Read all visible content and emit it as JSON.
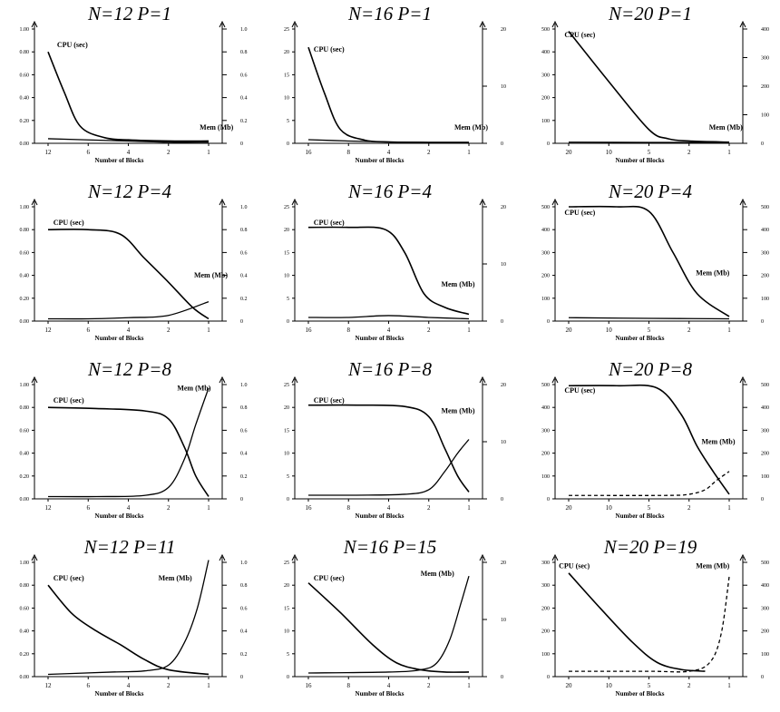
{
  "chart_data": [
    {
      "type": "line",
      "title": "N=12 P=1",
      "xlabel": "Number of Blocks",
      "x_ticks": [
        "12",
        "6",
        "4",
        "2",
        "1"
      ],
      "y_left_ticks": [
        "1.00",
        "0.80",
        "0.60",
        "0.40",
        "0.20",
        "0.00"
      ],
      "y_right_ticks": [
        "1.0",
        "0.8",
        "0.6",
        "0.4",
        "0.2",
        "0"
      ],
      "ylim": [
        0,
        1
      ],
      "series": [
        {
          "name": "CPU (sec)",
          "x": [
            0,
            0.1,
            0.2,
            0.35,
            0.5,
            0.75,
            1
          ],
          "values": [
            0.8,
            0.45,
            0.15,
            0.05,
            0.03,
            0.02,
            0.02
          ]
        },
        {
          "name": "Mem (Mb)",
          "x": [
            0,
            0.25,
            0.5,
            0.75,
            1
          ],
          "values": [
            0.04,
            0.03,
            0.02,
            0.01,
            0.01
          ]
        }
      ],
      "cpu_label_pos": [
        0.12,
        0.84
      ],
      "mem_label_pos": [
        0.88,
        0.12
      ],
      "mem_dashed": false
    },
    {
      "type": "line",
      "title": "N=16 P=1",
      "xlabel": "Number of Blocks",
      "x_ticks": [
        "16",
        "8",
        "4",
        "2",
        "1"
      ],
      "y_left_ticks": [
        "25",
        "20",
        "15",
        "10",
        "5",
        "0"
      ],
      "y_right_ticks": [
        "20",
        "10",
        "0"
      ],
      "ylim": [
        0,
        25
      ],
      "series": [
        {
          "name": "CPU (sec)",
          "x": [
            0,
            0.1,
            0.2,
            0.35,
            0.5,
            0.75,
            1
          ],
          "values": [
            21,
            11,
            3,
            0.7,
            0.3,
            0.2,
            0.2
          ]
        },
        {
          "name": "Mem (Mb)",
          "x": [
            0,
            0.25,
            0.5,
            0.75,
            1
          ],
          "values": [
            0.8,
            0.5,
            0.3,
            0.2,
            0.2
          ]
        }
      ],
      "cpu_label_pos": [
        0.1,
        0.8
      ],
      "mem_label_pos": [
        0.85,
        0.12
      ],
      "mem_dashed": false
    },
    {
      "type": "line",
      "title": "N=20 P=1",
      "xlabel": "Number of Blocks",
      "x_ticks": [
        "20",
        "10",
        "5",
        "2",
        "1"
      ],
      "y_left_ticks": [
        "500",
        "400",
        "300",
        "200",
        "100",
        "0"
      ],
      "y_right_ticks": [
        "400",
        "300",
        "200",
        "100",
        "0"
      ],
      "ylim": [
        0,
        500
      ],
      "series": [
        {
          "name": "CPU (sec)",
          "x": [
            0,
            0.25,
            0.5,
            0.62,
            0.75,
            1
          ],
          "values": [
            490,
            270,
            60,
            20,
            10,
            5
          ]
        },
        {
          "name": "Mem (Mb)",
          "x": [
            0,
            0.5,
            1
          ],
          "values": [
            5,
            4,
            3
          ]
        }
      ],
      "cpu_label_pos": [
        0.05,
        0.93
      ],
      "mem_label_pos": [
        0.82,
        0.12
      ],
      "mem_dashed": false
    },
    {
      "type": "line",
      "title": "N=12 P=4",
      "xlabel": "Number of Blocks",
      "x_ticks": [
        "12",
        "6",
        "4",
        "2",
        "1"
      ],
      "y_left_ticks": [
        "1.00",
        "0.80",
        "0.60",
        "0.40",
        "0.20",
        "0.00"
      ],
      "y_right_ticks": [
        "1.0",
        "0.8",
        "0.6",
        "0.4",
        "0.2",
        "0"
      ],
      "ylim": [
        0,
        1
      ],
      "series": [
        {
          "name": "CPU (sec)",
          "x": [
            0,
            0.25,
            0.45,
            0.6,
            0.75,
            0.9,
            1
          ],
          "values": [
            0.8,
            0.8,
            0.76,
            0.55,
            0.34,
            0.12,
            0.02
          ]
        },
        {
          "name": "Mem (Mb)",
          "x": [
            0,
            0.25,
            0.5,
            0.75,
            1
          ],
          "values": [
            0.02,
            0.02,
            0.03,
            0.05,
            0.17
          ]
        }
      ],
      "cpu_label_pos": [
        0.1,
        0.84
      ],
      "mem_label_pos": [
        0.85,
        0.38
      ],
      "mem_dashed": false
    },
    {
      "type": "line",
      "title": "N=16 P=4",
      "xlabel": "Number of Blocks",
      "x_ticks": [
        "16",
        "8",
        "4",
        "2",
        "1"
      ],
      "y_left_ticks": [
        "25",
        "20",
        "15",
        "10",
        "5",
        "0"
      ],
      "y_right_ticks": [
        "20",
        "10",
        "0"
      ],
      "ylim": [
        0,
        25
      ],
      "series": [
        {
          "name": "CPU (sec)",
          "x": [
            0,
            0.25,
            0.48,
            0.6,
            0.72,
            0.85,
            1
          ],
          "values": [
            20.5,
            20.5,
            20,
            15,
            6,
            3,
            1.5
          ]
        },
        {
          "name": "Mem (Mb)",
          "x": [
            0,
            0.25,
            0.5,
            0.75,
            1
          ],
          "values": [
            0.8,
            0.8,
            1.2,
            0.8,
            0.5
          ]
        }
      ],
      "cpu_label_pos": [
        0.1,
        0.84
      ],
      "mem_label_pos": [
        0.78,
        0.3
      ],
      "mem_dashed": false
    },
    {
      "type": "line",
      "title": "N=20 P=4",
      "xlabel": "Number of Blocks",
      "x_ticks": [
        "20",
        "10",
        "5",
        "2",
        "1"
      ],
      "y_left_ticks": [
        "500",
        "400",
        "300",
        "200",
        "100",
        "0"
      ],
      "y_right_ticks": [
        "500",
        "400",
        "300",
        "200",
        "100",
        "0"
      ],
      "ylim": [
        0,
        500
      ],
      "series": [
        {
          "name": "CPU (sec)",
          "x": [
            0,
            0.3,
            0.5,
            0.65,
            0.8,
            1
          ],
          "values": [
            500,
            500,
            480,
            300,
            120,
            20
          ]
        },
        {
          "name": "Mem (Mb)",
          "x": [
            0,
            0.5,
            1
          ],
          "values": [
            15,
            12,
            10
          ]
        }
      ],
      "cpu_label_pos": [
        0.05,
        0.93
      ],
      "mem_label_pos": [
        0.75,
        0.4
      ],
      "mem_dashed": false
    },
    {
      "type": "line",
      "title": "N=12 P=8",
      "xlabel": "Number of Blocks",
      "x_ticks": [
        "12",
        "6",
        "4",
        "2",
        "1"
      ],
      "y_left_ticks": [
        "1.00",
        "0.80",
        "0.60",
        "0.40",
        "0.20",
        "0.00"
      ],
      "y_right_ticks": [
        "1.0",
        "0.8",
        "0.6",
        "0.4",
        "0.2",
        "0"
      ],
      "ylim": [
        0,
        1
      ],
      "series": [
        {
          "name": "CPU (sec)",
          "x": [
            0,
            0.3,
            0.6,
            0.75,
            0.85,
            0.92,
            1
          ],
          "values": [
            0.8,
            0.79,
            0.77,
            0.7,
            0.45,
            0.2,
            0.02
          ]
        },
        {
          "name": "Mem (Mb)",
          "x": [
            0,
            0.3,
            0.6,
            0.75,
            0.85,
            0.92,
            1
          ],
          "values": [
            0.02,
            0.02,
            0.03,
            0.1,
            0.35,
            0.65,
            0.97
          ]
        }
      ],
      "cpu_label_pos": [
        0.1,
        0.84
      ],
      "mem_label_pos": [
        0.76,
        0.95
      ],
      "mem_dashed": false
    },
    {
      "type": "line",
      "title": "N=16 P=8",
      "xlabel": "Number of Blocks",
      "x_ticks": [
        "16",
        "8",
        "4",
        "2",
        "1"
      ],
      "y_left_ticks": [
        "25",
        "20",
        "15",
        "10",
        "5",
        "0"
      ],
      "y_right_ticks": [
        "20",
        "10",
        "0"
      ],
      "ylim": [
        0,
        25
      ],
      "series": [
        {
          "name": "CPU (sec)",
          "x": [
            0,
            0.3,
            0.6,
            0.75,
            0.85,
            0.93,
            1
          ],
          "values": [
            20.5,
            20.5,
            20.2,
            18,
            11,
            5,
            1.5
          ]
        },
        {
          "name": "Mem (Mb)",
          "x": [
            0,
            0.3,
            0.6,
            0.75,
            0.85,
            0.93,
            1
          ],
          "values": [
            0.8,
            0.8,
            1,
            2,
            6,
            10,
            13
          ]
        }
      ],
      "cpu_label_pos": [
        0.1,
        0.84
      ],
      "mem_label_pos": [
        0.78,
        0.75
      ],
      "mem_dashed": false
    },
    {
      "type": "line",
      "title": "N=20 P=8",
      "xlabel": "Number of Blocks",
      "x_ticks": [
        "20",
        "10",
        "5",
        "2",
        "1"
      ],
      "y_left_ticks": [
        "500",
        "400",
        "300",
        "200",
        "100",
        "0"
      ],
      "y_right_ticks": [
        "500",
        "400",
        "300",
        "200",
        "100",
        "0"
      ],
      "ylim": [
        0,
        500
      ],
      "series": [
        {
          "name": "CPU (sec)",
          "x": [
            0,
            0.3,
            0.55,
            0.7,
            0.8,
            0.9,
            1
          ],
          "values": [
            495,
            495,
            485,
            370,
            230,
            120,
            20
          ]
        },
        {
          "name": "Mem (Mb)",
          "x": [
            0,
            0.6,
            0.75,
            0.85,
            0.92,
            1
          ],
          "values": [
            15,
            15,
            20,
            40,
            80,
            120
          ]
        }
      ],
      "cpu_label_pos": [
        0.05,
        0.93
      ],
      "mem_label_pos": [
        0.78,
        0.48
      ],
      "mem_dashed": true
    },
    {
      "type": "line",
      "title": "N=12 P=11",
      "xlabel": "Number of Blocks",
      "x_ticks": [
        "12",
        "6",
        "4",
        "2",
        "1"
      ],
      "y_left_ticks": [
        "1.00",
        "0.80",
        "0.60",
        "0.40",
        "0.20",
        "0.00"
      ],
      "y_right_ticks": [
        "1.0",
        "0.8",
        "0.6",
        "0.4",
        "0.2",
        "0"
      ],
      "ylim": [
        0,
        1
      ],
      "series": [
        {
          "name": "CPU (sec)",
          "x": [
            0,
            0.15,
            0.3,
            0.45,
            0.6,
            0.75,
            1
          ],
          "values": [
            0.8,
            0.55,
            0.4,
            0.28,
            0.15,
            0.06,
            0.02
          ]
        },
        {
          "name": "Mem (Mb)",
          "x": [
            0,
            0.4,
            0.6,
            0.75,
            0.85,
            0.93,
            1
          ],
          "values": [
            0.02,
            0.04,
            0.05,
            0.1,
            0.3,
            0.6,
            1.02
          ]
        }
      ],
      "cpu_label_pos": [
        0.1,
        0.84
      ],
      "mem_label_pos": [
        0.66,
        0.84
      ],
      "mem_dashed": false
    },
    {
      "type": "line",
      "title": "N=16 P=15",
      "xlabel": "Number of Blocks",
      "x_ticks": [
        "16",
        "8",
        "4",
        "2",
        "1"
      ],
      "y_left_ticks": [
        "25",
        "20",
        "15",
        "10",
        "5",
        "0"
      ],
      "y_right_ticks": [
        "20",
        "10",
        "0"
      ],
      "ylim": [
        0,
        25
      ],
      "series": [
        {
          "name": "CPU (sec)",
          "x": [
            0,
            0.2,
            0.4,
            0.55,
            0.7,
            0.85,
            1
          ],
          "values": [
            20.5,
            14,
            7,
            3,
            1.5,
            1,
            1
          ]
        },
        {
          "name": "Mem (Mb)",
          "x": [
            0,
            0.5,
            0.7,
            0.8,
            0.88,
            0.95,
            1
          ],
          "values": [
            0.8,
            1,
            1.5,
            3,
            8,
            16,
            22
          ]
        }
      ],
      "cpu_label_pos": [
        0.1,
        0.84
      ],
      "mem_label_pos": [
        0.67,
        0.88
      ],
      "mem_dashed": false
    },
    {
      "type": "line",
      "title": "N=20 P=19",
      "xlabel": "Number of Blocks",
      "x_ticks": [
        "20",
        "10",
        "5",
        "2",
        "1"
      ],
      "y_left_ticks": [
        "300",
        "300",
        "200",
        "200",
        "100",
        "0"
      ],
      "y_right_ticks": [
        "500",
        "400",
        "300",
        "200",
        "100",
        "0"
      ],
      "ylim": [
        0,
        320
      ],
      "series": [
        {
          "name": "CPU (sec)",
          "x": [
            0,
            0.2,
            0.4,
            0.55,
            0.7,
            0.85
          ],
          "values": [
            290,
            190,
            95,
            40,
            20,
            15
          ]
        },
        {
          "name": "Mem (Mb)",
          "x": [
            0,
            0.5,
            0.75,
            0.88,
            0.95,
            1
          ],
          "values": [
            15,
            15,
            15,
            40,
            120,
            280
          ]
        }
      ],
      "cpu_label_pos": [
        0.02,
        0.95
      ],
      "mem_label_pos": [
        0.75,
        0.95
      ],
      "mem_dashed": true
    }
  ]
}
